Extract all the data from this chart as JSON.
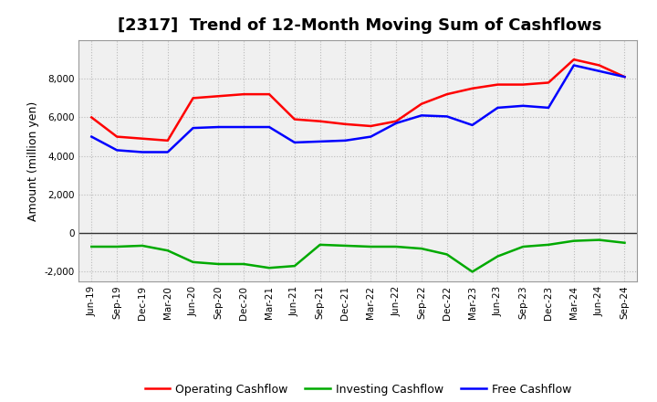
{
  "title": "[2317]  Trend of 12-Month Moving Sum of Cashflows",
  "ylabel": "Amount (million yen)",
  "x_labels": [
    "Jun-19",
    "Sep-19",
    "Dec-19",
    "Mar-20",
    "Jun-20",
    "Sep-20",
    "Dec-20",
    "Mar-21",
    "Jun-21",
    "Sep-21",
    "Dec-21",
    "Mar-22",
    "Jun-22",
    "Sep-22",
    "Dec-22",
    "Mar-23",
    "Jun-23",
    "Sep-23",
    "Dec-23",
    "Mar-24",
    "Jun-24",
    "Sep-24"
  ],
  "operating_cashflow": [
    6000,
    5000,
    4900,
    4800,
    7000,
    7100,
    7200,
    7200,
    5900,
    5800,
    5650,
    5550,
    5800,
    6700,
    7200,
    7500,
    7700,
    7700,
    7800,
    9000,
    8700,
    8100
  ],
  "investing_cashflow": [
    -700,
    -700,
    -650,
    -900,
    -1500,
    -1600,
    -1600,
    -1800,
    -1700,
    -600,
    -650,
    -700,
    -700,
    -800,
    -1100,
    -2000,
    -1200,
    -700,
    -600,
    -400,
    -350,
    -500
  ],
  "free_cashflow": [
    5000,
    4300,
    4200,
    4200,
    5450,
    5500,
    5500,
    5500,
    4700,
    4750,
    4800,
    5000,
    5700,
    6100,
    6050,
    5600,
    6500,
    6600,
    6500,
    8700,
    8400,
    8100
  ],
  "operating_color": "#ff0000",
  "investing_color": "#00aa00",
  "free_color": "#0000ff",
  "ylim": [
    -2500,
    10000
  ],
  "yticks": [
    -2000,
    0,
    2000,
    4000,
    6000,
    8000
  ],
  "background_color": "#ffffff",
  "plot_bg_color": "#f0f0f0",
  "grid_color": "#bbbbbb",
  "title_fontsize": 13,
  "axis_label_fontsize": 9,
  "tick_fontsize": 7.5,
  "legend_fontsize": 9,
  "line_width": 1.8
}
